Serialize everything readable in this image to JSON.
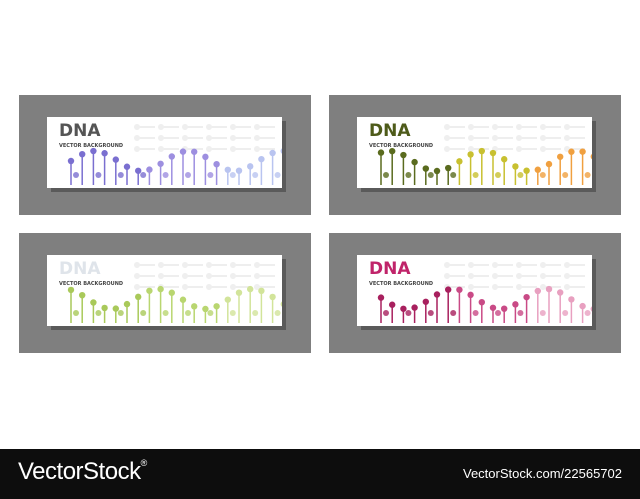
{
  "banners": [
    {
      "title": "DNA",
      "subtitle": "VECTOR BACKGROUND"
    },
    {
      "title": "DNA",
      "subtitle": "VECTOR BACKGROUND"
    },
    {
      "title": "DNA",
      "subtitle": "VECTOR BACKGROUND"
    },
    {
      "title": "DNA",
      "subtitle": "VECTOR BACKGROUND"
    }
  ],
  "footer": {
    "brand": "VectorStock",
    "registered": "®",
    "url": "VectorStock.com/22565702"
  }
}
